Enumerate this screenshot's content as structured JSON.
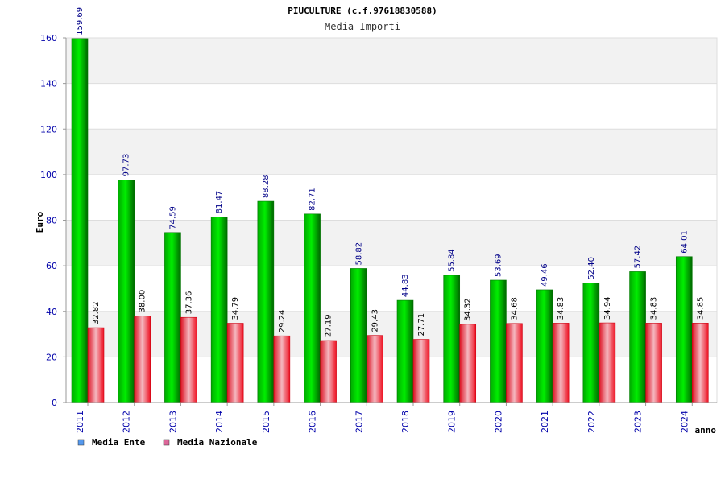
{
  "chart_data": {
    "type": "bar",
    "title": "PIUCULTURE (c.f.97618830588)",
    "subtitle": "Media Importi",
    "xlabel": "anno",
    "ylabel": "Euro",
    "categories": [
      "2011",
      "2012",
      "2013",
      "2014",
      "2015",
      "2016",
      "2017",
      "2018",
      "2019",
      "2020",
      "2021",
      "2022",
      "2023",
      "2024"
    ],
    "series": [
      {
        "name": "Media Ente",
        "values": [
          159.69,
          97.73,
          74.59,
          81.47,
          88.28,
          82.71,
          58.82,
          44.83,
          55.84,
          53.69,
          49.46,
          52.4,
          57.42,
          64.01
        ],
        "labels": [
          "159.69",
          "97.73",
          "74.59",
          "81.47",
          "88.28",
          "82.71",
          "58.82",
          "44.83",
          "55.84",
          "53.69",
          "49.46",
          "52.40",
          "57.42",
          "64.01"
        ]
      },
      {
        "name": "Media Nazionale",
        "values": [
          32.82,
          38.0,
          37.36,
          34.79,
          29.24,
          27.19,
          29.43,
          27.71,
          34.32,
          34.68,
          34.83,
          34.94,
          34.83,
          34.85
        ],
        "labels": [
          "32.82",
          "38.00",
          "37.36",
          "34.79",
          "29.24",
          "27.19",
          "29.43",
          "27.71",
          "34.32",
          "34.68",
          "34.83",
          "34.94",
          "34.83",
          "34.85"
        ]
      }
    ],
    "ylim": [
      0,
      160
    ],
    "yticks": [
      0,
      20,
      40,
      60,
      80,
      100,
      120,
      140,
      160
    ],
    "grid": true,
    "legend_position": "bottom-left",
    "colors": {
      "ente_bar": "#00cc00",
      "ente_bar_dark": "#006600",
      "nazionale_bar": "#ee2233",
      "nazionale_bar_light": "#f4b8c0",
      "ente_label": "#000088",
      "nazionale_label": "#000000",
      "legend_ente": "#5599ee",
      "legend_nazionale": "#dd6699",
      "band": "#f2f2f2"
    }
  }
}
